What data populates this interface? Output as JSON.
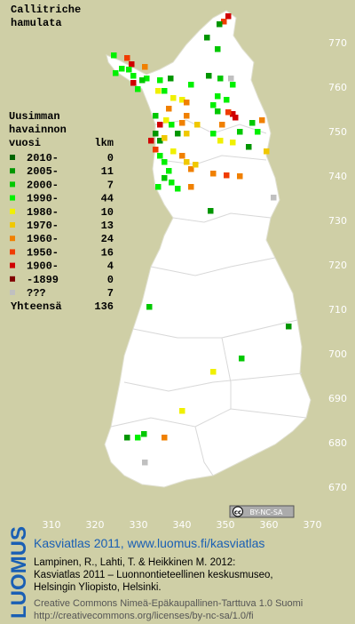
{
  "title": [
    "Callitriche",
    "hamulata"
  ],
  "legend": {
    "heading": [
      "Uusimman",
      "havainnon",
      "vuosi"
    ],
    "count_heading": "lkm",
    "rows": [
      {
        "label": "2010-",
        "count": 0,
        "color": "#006400"
      },
      {
        "label": "2005-",
        "count": 11,
        "color": "#009600"
      },
      {
        "label": "2000-",
        "count": 7,
        "color": "#00c800"
      },
      {
        "label": "1990-",
        "count": 44,
        "color": "#00f000"
      },
      {
        "label": "1980-",
        "count": 10,
        "color": "#f0f000"
      },
      {
        "label": "1970-",
        "count": 13,
        "color": "#f0c800"
      },
      {
        "label": "1960-",
        "count": 24,
        "color": "#f08000"
      },
      {
        "label": "1950-",
        "count": 16,
        "color": "#f03c00"
      },
      {
        "label": "1900-",
        "count": 4,
        "color": "#d00000"
      },
      {
        "label": "-1899",
        "count": 0,
        "color": "#800000"
      },
      {
        "label": "???",
        "count": 7,
        "color": "#c0c0c0"
      }
    ],
    "total_label": "Yhteensä",
    "total": 136
  },
  "grid": {
    "x_labels": [
      310,
      320,
      330,
      340,
      350,
      360,
      370
    ],
    "y_labels": [
      770,
      760,
      750,
      740,
      730,
      720,
      710,
      700,
      690,
      680,
      670
    ]
  },
  "license_badge": {
    "cc": "cc",
    "terms": "BY-NC-SA"
  },
  "footer": {
    "brand": "LUOMUS",
    "headline": "Kasviatlas 2011, www.luomus.fi/kasviatlas",
    "citation": [
      "Lampinen, R., Lahti, T. & Heikkinen M. 2012:",
      "Kasviatlas 2011 – Luonnontieteellinen keskusmuseo,",
      "Helsingin Yliopisto, Helsinki."
    ],
    "license": [
      "Creative Commons Nimeä-Epäkaupallinen-Tarttuva 1.0 Suomi",
      "http://creativecommons.org/licenses/by-nc-sa/1.0/fi"
    ]
  }
}
